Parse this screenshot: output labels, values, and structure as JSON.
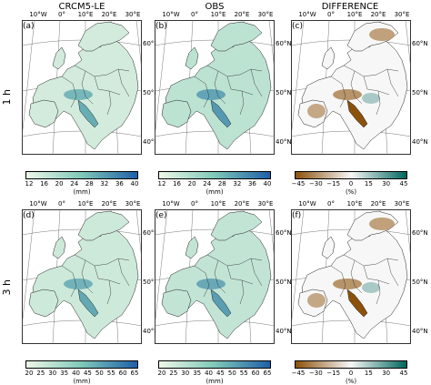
{
  "columns": [
    "CRCM5-LE",
    "OBS",
    "DIFFERENCE"
  ],
  "rows": [
    "1 h",
    "3 h"
  ],
  "panels": [
    {
      "letter": "(a)",
      "kind": "seq",
      "row": 0,
      "col": 0,
      "level": 0.25
    },
    {
      "letter": "(b)",
      "kind": "seq",
      "row": 0,
      "col": 1,
      "level": 0.45
    },
    {
      "letter": "(c)",
      "kind": "div",
      "row": 0,
      "col": 2,
      "level": 0.0
    },
    {
      "letter": "(d)",
      "kind": "seq",
      "row": 1,
      "col": 0,
      "level": 0.3
    },
    {
      "letter": "(e)",
      "kind": "seq",
      "row": 1,
      "col": 1,
      "level": 0.4
    },
    {
      "letter": "(f)",
      "kind": "div",
      "row": 1,
      "col": 2,
      "level": 0.0
    }
  ],
  "lon_labels": [
    "10°W",
    "0°",
    "10°E",
    "20°E",
    "30°E"
  ],
  "lat_labels": [
    "60°N",
    "50°N",
    "40°N"
  ],
  "colorbars": [
    {
      "row": 0,
      "col": 0,
      "ticks": [
        "12",
        "16",
        "20",
        "24",
        "28",
        "32",
        "36",
        "40"
      ],
      "unit": "(mm)"
    },
    {
      "row": 0,
      "col": 1,
      "ticks": [
        "12",
        "16",
        "20",
        "24",
        "28",
        "32",
        "36",
        "40"
      ],
      "unit": "(mm)"
    },
    {
      "row": 0,
      "col": 2,
      "ticks": [
        "−45",
        "−30",
        "−15",
        "0",
        "15",
        "30",
        "45"
      ],
      "unit": "(%)"
    },
    {
      "row": 1,
      "col": 0,
      "ticks": [
        "20",
        "25",
        "30",
        "35",
        "40",
        "45",
        "50",
        "55",
        "60",
        "65"
      ],
      "unit": "(mm)"
    },
    {
      "row": 1,
      "col": 1,
      "ticks": [
        "20",
        "25",
        "30",
        "35",
        "40",
        "45",
        "50",
        "55",
        "60",
        "65"
      ],
      "unit": "(mm)"
    },
    {
      "row": 1,
      "col": 2,
      "ticks": [
        "−45",
        "−30",
        "−15",
        "0",
        "15",
        "30",
        "45"
      ],
      "unit": "(%)"
    }
  ],
  "colors": {
    "seq_low": "#eef7e8",
    "seq_mid": "#7fc8b8",
    "seq_high": "#1f5fa8",
    "div_neg": "#8c510a",
    "div_zero": "#f7f7f7",
    "div_pos": "#01665e"
  }
}
